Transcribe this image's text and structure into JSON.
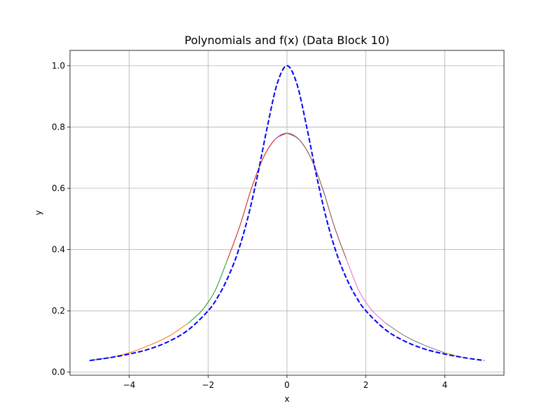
{
  "chart_data": {
    "type": "line",
    "title": "Polynomials and f(x) (Data Block 10)",
    "xlabel": "x",
    "ylabel": "y",
    "xlim": [
      -5.5,
      5.5
    ],
    "ylim": [
      -0.01,
      1.05
    ],
    "xticks": [
      -4,
      -2,
      0,
      2,
      4
    ],
    "xtick_labels": [
      "−4",
      "−2",
      "0",
      "2",
      "4"
    ],
    "yticks": [
      0.0,
      0.2,
      0.4,
      0.6,
      0.8,
      1.0
    ],
    "ytick_labels": [
      "0.0",
      "0.2",
      "0.4",
      "0.6",
      "0.8",
      "1.0"
    ],
    "grid": true,
    "series": [
      {
        "color": "#1f77b4",
        "dash": "solid",
        "x": [
          -5.0,
          -4.5
        ],
        "y": [
          0.038,
          0.047
        ]
      },
      {
        "color": "#ff7f0e",
        "dash": "solid",
        "x": [
          -4.5,
          -4.0,
          -3.5,
          -3.0,
          -2.5
        ],
        "y": [
          0.047,
          0.063,
          0.087,
          0.117,
          0.16
        ]
      },
      {
        "color": "#2ca02c",
        "dash": "solid",
        "x": [
          -2.5,
          -2.2,
          -2.0,
          -1.8,
          -1.5
        ],
        "y": [
          0.16,
          0.195,
          0.228,
          0.272,
          0.37
        ]
      },
      {
        "color": "#d62728",
        "dash": "solid",
        "x": [
          -1.5,
          -1.2,
          -0.9,
          -0.6,
          -0.3,
          0.0
        ],
        "y": [
          0.37,
          0.475,
          0.6,
          0.7,
          0.76,
          0.78
        ]
      },
      {
        "color": "#9467bd",
        "dash": "solid",
        "x": [
          -0.3,
          -0.15,
          0.0,
          0.15,
          0.3
        ],
        "y": [
          0.76,
          0.775,
          0.78,
          0.775,
          0.76
        ]
      },
      {
        "color": "#8c564b",
        "dash": "solid",
        "x": [
          0.0,
          0.3,
          0.6,
          0.9,
          1.2,
          1.5
        ],
        "y": [
          0.78,
          0.76,
          0.7,
          0.6,
          0.475,
          0.37
        ]
      },
      {
        "color": "#e377c2",
        "dash": "solid",
        "x": [
          1.5,
          1.8,
          2.0,
          2.2,
          2.5
        ],
        "y": [
          0.37,
          0.272,
          0.228,
          0.195,
          0.16
        ]
      },
      {
        "color": "#7f7f7f",
        "dash": "solid",
        "x": [
          2.5,
          3.0,
          3.5,
          4.0
        ],
        "y": [
          0.16,
          0.117,
          0.087,
          0.063
        ]
      },
      {
        "color": "#bcbd22",
        "dash": "solid",
        "x": [
          4.0,
          4.5
        ],
        "y": [
          0.063,
          0.047
        ]
      },
      {
        "color": "#0000ff",
        "dash": "dashed",
        "x": [
          -5.0,
          -4.5,
          -4.0,
          -3.5,
          -3.0,
          -2.5,
          -2.0,
          -1.75,
          -1.5,
          -1.25,
          -1.0,
          -0.75,
          -0.5,
          -0.25,
          0.0,
          0.25,
          0.5,
          0.75,
          1.0,
          1.25,
          1.5,
          1.75,
          2.0,
          2.5,
          3.0,
          3.5,
          4.0,
          4.5,
          5.0
        ],
        "y": [
          0.038,
          0.047,
          0.059,
          0.075,
          0.1,
          0.138,
          0.2,
          0.246,
          0.308,
          0.39,
          0.5,
          0.64,
          0.8,
          0.941,
          1.0,
          0.941,
          0.8,
          0.64,
          0.5,
          0.39,
          0.308,
          0.246,
          0.2,
          0.138,
          0.1,
          0.075,
          0.059,
          0.047,
          0.038
        ]
      }
    ]
  }
}
